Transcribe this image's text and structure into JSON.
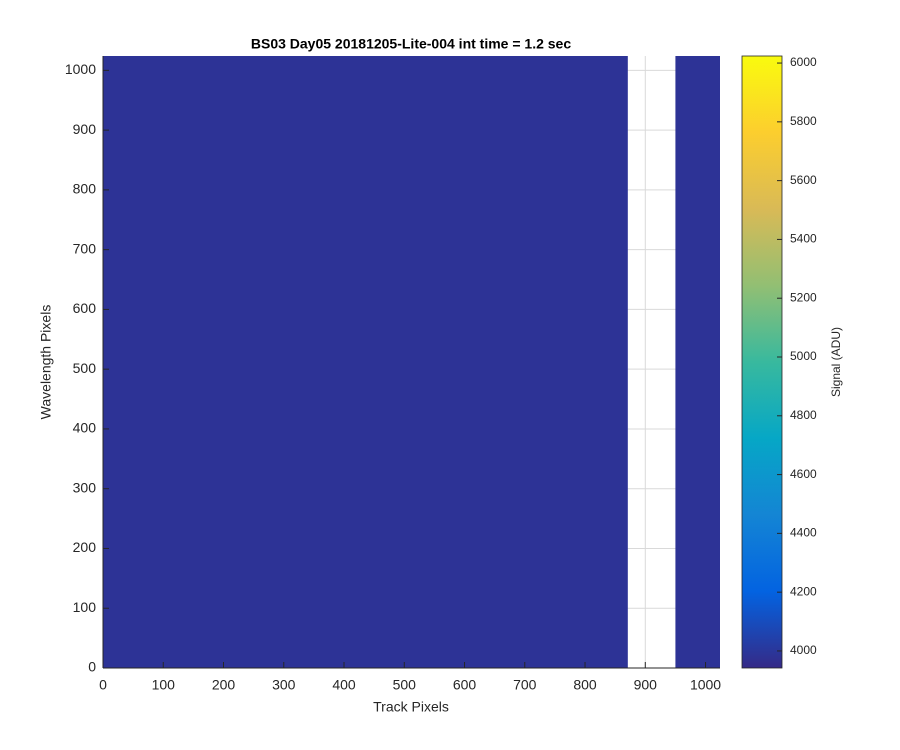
{
  "chart_data": {
    "type": "image",
    "title": "BS03 Day05 20181205-Lite-004 int time = 1.2 sec",
    "xlabel": "Track Pixels",
    "ylabel": "Wavelength Pixels",
    "xlim": [
      0,
      1024
    ],
    "ylim": [
      0,
      1024
    ],
    "xticks": [
      0,
      100,
      200,
      300,
      400,
      500,
      600,
      700,
      800,
      900,
      1000
    ],
    "yticks": [
      0,
      100,
      200,
      300,
      400,
      500,
      600,
      700,
      800,
      900,
      1000
    ],
    "grid": true,
    "regions": [
      {
        "xrange": [
          0,
          871
        ],
        "yrange": [
          0,
          1024
        ],
        "value": 3985
      },
      {
        "xrange": [
          950,
          1024
        ],
        "yrange": [
          0,
          1024
        ],
        "value": 3985
      }
    ],
    "colorbar": {
      "label": "Signal (ADU)",
      "clim": [
        3942,
        6024
      ],
      "ticks": [
        4000,
        4200,
        4400,
        4600,
        4800,
        5000,
        5200,
        5400,
        5600,
        5800,
        6000
      ]
    },
    "colormap": [
      "#352a87",
      "#0363e1",
      "#1485d4",
      "#06a7c6",
      "#38b99e",
      "#92bf73",
      "#d9ba56",
      "#fcce2e",
      "#f9fb0e"
    ]
  }
}
